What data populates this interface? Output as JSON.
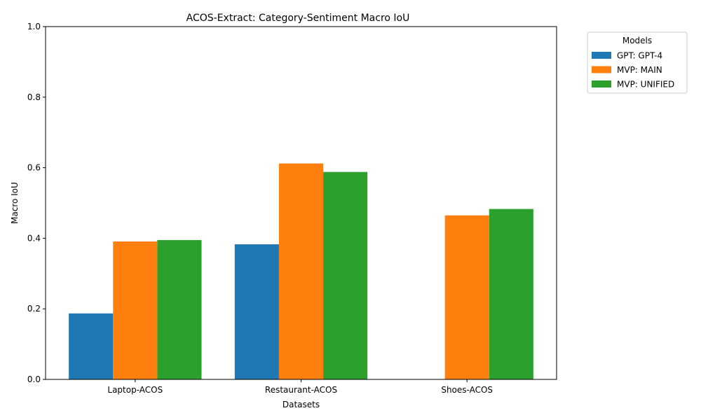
{
  "chart_data": {
    "type": "bar",
    "title": "ACOS-Extract: Category-Sentiment Macro IoU",
    "xlabel": "Datasets",
    "ylabel": "Macro IoU",
    "ylim": [
      0,
      1
    ],
    "yticks": [
      "0.0",
      "0.2",
      "0.4",
      "0.6",
      "0.8",
      "1.0"
    ],
    "grid": false,
    "legend": {
      "title": "Models",
      "placement": "outside-top-right"
    },
    "categories": [
      "Laptop-ACOS",
      "Restaurant-ACOS",
      "Shoes-ACOS"
    ],
    "series": [
      {
        "name": "GPT: GPT-4",
        "color": "#1f77b4",
        "values": [
          0.187,
          0.383,
          null
        ]
      },
      {
        "name": "MVP: MAIN",
        "color": "#ff7f0e",
        "values": [
          0.391,
          0.612,
          0.465
        ]
      },
      {
        "name": "MVP: UNIFIED",
        "color": "#2ca02c",
        "values": [
          0.395,
          0.588,
          0.483
        ]
      }
    ]
  }
}
